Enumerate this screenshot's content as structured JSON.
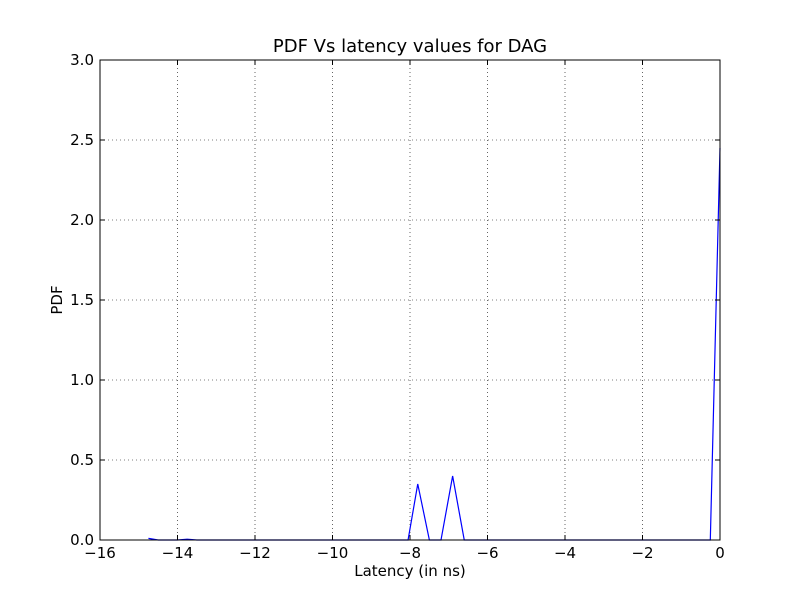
{
  "chart_data": {
    "type": "line",
    "title": "PDF Vs latency values for DAG",
    "xlabel": "Latency (in ns)",
    "ylabel": "PDF",
    "xlim": [
      -16,
      0
    ],
    "ylim": [
      0,
      3.0
    ],
    "grid": true,
    "x_ticks": [
      -16,
      -14,
      -12,
      -10,
      -8,
      -6,
      -4,
      -2,
      0
    ],
    "x_tick_labels": [
      "−16",
      "−14",
      "−12",
      "−10",
      "−8",
      "−6",
      "−4",
      "−2",
      "0"
    ],
    "y_ticks": [
      0,
      0.5,
      1.0,
      1.5,
      2.0,
      2.5,
      3.0
    ],
    "y_tick_labels": [
      "0.0",
      "0.5",
      "1.0",
      "1.5",
      "2.0",
      "2.5",
      "3.0"
    ],
    "series": [
      {
        "color": "#0000ff",
        "x": [
          -14.75,
          -14.5,
          -14.2,
          -14.0,
          -13.75,
          -13.5,
          -12.0,
          -10.0,
          -8.3,
          -8.05,
          -7.8,
          -7.5,
          -7.2,
          -6.9,
          -6.6,
          -5.0,
          -3.0,
          -1.0,
          -0.3,
          -0.25,
          0.0
        ],
        "y": [
          0.01,
          0.0,
          0.0,
          0.0,
          0.005,
          0.0,
          0.0,
          0.0,
          0.0,
          0.0,
          0.35,
          0.0,
          0.0,
          0.4,
          0.0,
          0.0,
          0.0,
          0.0,
          0.0,
          0.0,
          2.45
        ]
      }
    ]
  }
}
